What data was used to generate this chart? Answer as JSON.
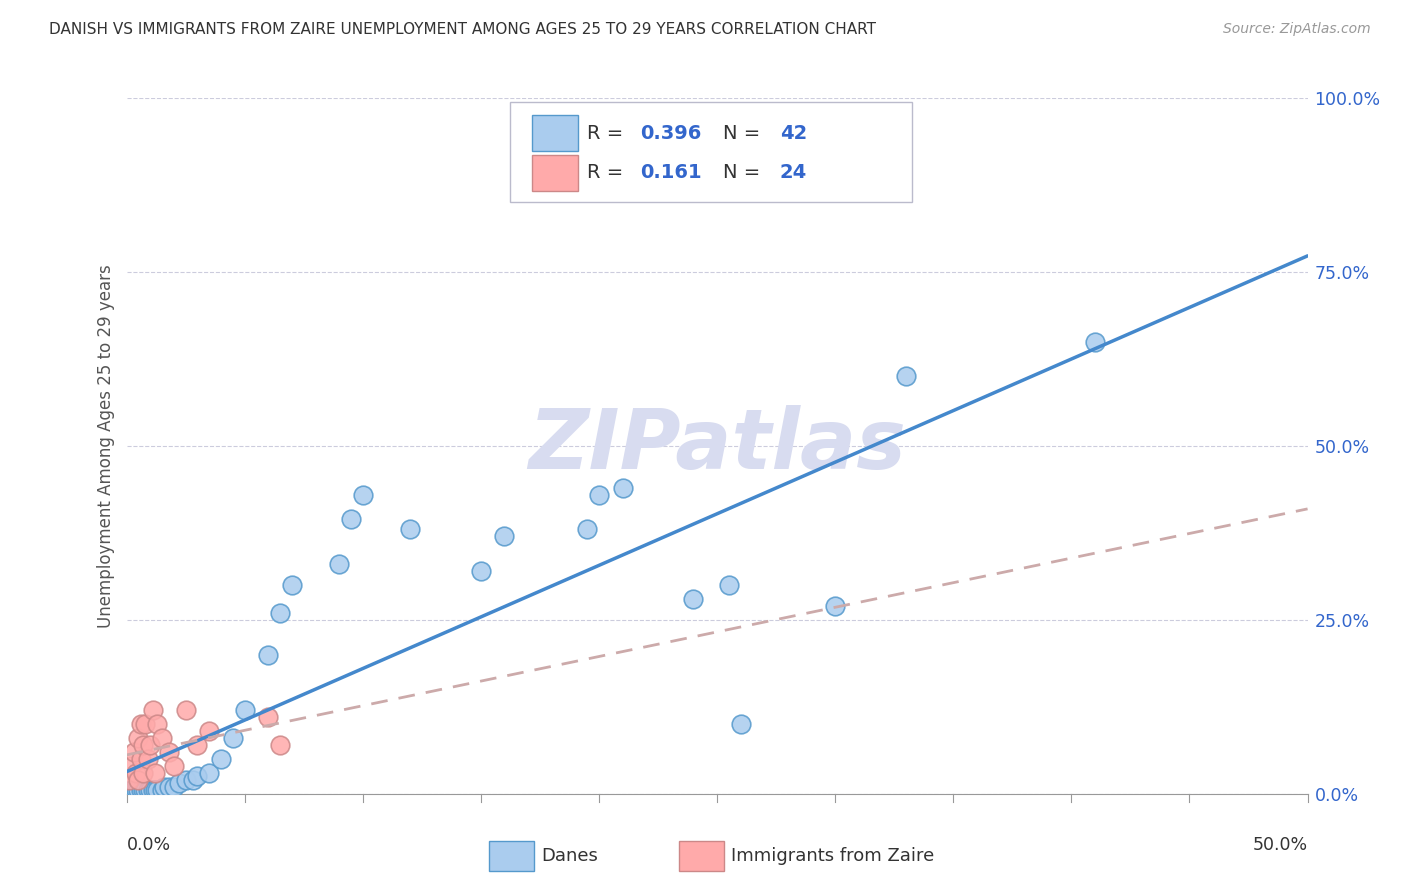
{
  "title": "DANISH VS IMMIGRANTS FROM ZAIRE UNEMPLOYMENT AMONG AGES 25 TO 29 YEARS CORRELATION CHART",
  "source": "Source: ZipAtlas.com",
  "ylabel": "Unemployment Among Ages 25 to 29 years",
  "xlim": [
    0.0,
    0.5
  ],
  "ylim": [
    0.0,
    1.0
  ],
  "ytick_vals": [
    0.0,
    0.25,
    0.5,
    0.75,
    1.0
  ],
  "ytick_labels": [
    "0.0%",
    "25.0%",
    "50.0%",
    "75.0%",
    "100.0%"
  ],
  "xtick_left_label": "0.0%",
  "xtick_right_label": "50.0%",
  "danes_R": "0.396",
  "danes_N": "42",
  "immigrants_R": "0.161",
  "immigrants_N": "24",
  "danes_fill": "#AACCEE",
  "danes_edge": "#5599CC",
  "immigrants_fill": "#FFAAAA",
  "immigrants_edge": "#CC8888",
  "danes_line": "#4488CC",
  "immigrants_line": "#CCAAAA",
  "legend_r_color": "#3366CC",
  "legend_n_color": "#3366CC",
  "watermark_text": "ZIPatlas",
  "danes_x": [
    0.002,
    0.003,
    0.004,
    0.005,
    0.006,
    0.007,
    0.008,
    0.009,
    0.01,
    0.011,
    0.012,
    0.013,
    0.015,
    0.016,
    0.018,
    0.02,
    0.022,
    0.025,
    0.028,
    0.03,
    0.035,
    0.04,
    0.045,
    0.05,
    0.06,
    0.065,
    0.07,
    0.09,
    0.095,
    0.1,
    0.12,
    0.15,
    0.16,
    0.195,
    0.2,
    0.21,
    0.24,
    0.255,
    0.26,
    0.3,
    0.33,
    0.41
  ],
  "danes_y": [
    0.005,
    0.005,
    0.005,
    0.005,
    0.005,
    0.005,
    0.005,
    0.005,
    0.005,
    0.005,
    0.005,
    0.005,
    0.005,
    0.01,
    0.01,
    0.01,
    0.015,
    0.02,
    0.02,
    0.025,
    0.03,
    0.05,
    0.08,
    0.12,
    0.2,
    0.26,
    0.3,
    0.33,
    0.395,
    0.43,
    0.38,
    0.32,
    0.37,
    0.38,
    0.43,
    0.44,
    0.28,
    0.3,
    0.1,
    0.27,
    0.6,
    0.65
  ],
  "immigrants_x": [
    0.001,
    0.002,
    0.003,
    0.004,
    0.005,
    0.005,
    0.006,
    0.006,
    0.007,
    0.007,
    0.008,
    0.009,
    0.01,
    0.011,
    0.012,
    0.013,
    0.015,
    0.018,
    0.02,
    0.025,
    0.03,
    0.035,
    0.06,
    0.065
  ],
  "immigrants_y": [
    0.02,
    0.04,
    0.06,
    0.03,
    0.08,
    0.02,
    0.05,
    0.1,
    0.03,
    0.07,
    0.1,
    0.05,
    0.07,
    0.12,
    0.03,
    0.1,
    0.08,
    0.06,
    0.04,
    0.12,
    0.07,
    0.09,
    0.11,
    0.07
  ]
}
